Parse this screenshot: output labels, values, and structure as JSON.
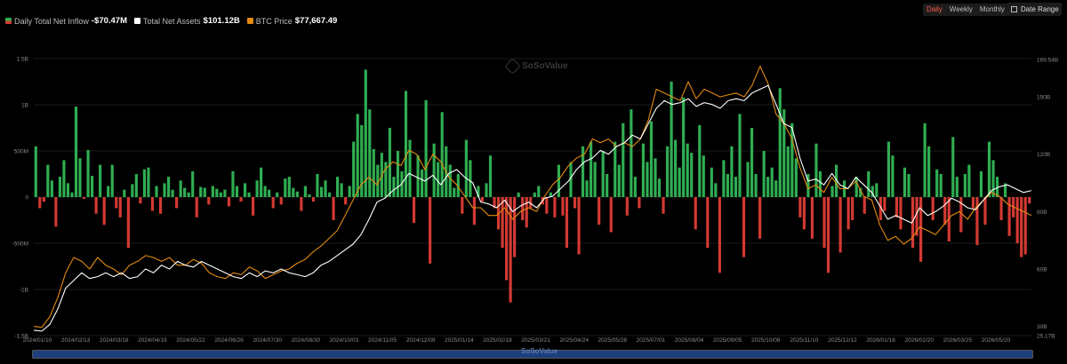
{
  "legend": {
    "inflow_label": "Daily Total Net Inflow",
    "inflow_value": "-$70.47M",
    "assets_label": "Total Net Assets",
    "assets_value": "$101.12B",
    "btc_label": "BTC Price",
    "btc_value": "$77,667.49"
  },
  "controls": {
    "daily": "Daily",
    "weekly": "Weekly",
    "monthly": "Monthly",
    "date_range": "Date Range"
  },
  "watermark": "SoSoValue",
  "colors": {
    "inflow_positive": "#2fae52",
    "inflow_negative": "#d23a32",
    "assets_line": "#ffffff",
    "btc_line": "#e28a12",
    "active_period": "#ff5a4a",
    "navigator": "#1e3f7d"
  },
  "chart_data": {
    "type": "bar",
    "left_axis": {
      "ticks": [
        "1.5B",
        "1B",
        "500M",
        "0",
        "-500M",
        "-1B",
        "-1.5B"
      ],
      "range": [
        -1.5,
        1.5
      ],
      "unit": "B USD"
    },
    "right_axis": {
      "ticks": [
        "169.54B",
        "150B",
        "120B",
        "90B",
        "60B",
        "30B",
        "25.17B"
      ],
      "range": [
        25.17,
        169.54
      ],
      "unit": "B USD"
    },
    "x_ticks": [
      "2024/01/10",
      "2024/02/13",
      "2024/03/18",
      "2024/04/19",
      "2024/05/22",
      "2024/06/26",
      "2024/07/30",
      "2024/08/30",
      "2024/10/03",
      "2024/11/05",
      "2024/12/09",
      "2025/01/14",
      "2025/02/18",
      "2025/03/21",
      "2025/04/24",
      "2025/05/28",
      "2025/07/01",
      "2025/08/04",
      "2025/09/05",
      "2025/10/08",
      "2025/11/10",
      "2025/12/12",
      "2026/01/16",
      "2026/02/20",
      "2026/03/25",
      "2026/05/20"
    ],
    "series": [
      {
        "name": "Daily Total Net Inflow",
        "kind": "bar",
        "axis": "left",
        "values": [
          0.55,
          -0.12,
          -0.05,
          0.35,
          0.18,
          -0.32,
          0.22,
          0.4,
          0.15,
          0.05,
          0.98,
          0.42,
          -0.02,
          0.51,
          0.23,
          -0.18,
          0.35,
          -0.3,
          0.12,
          0.35,
          -0.12,
          -0.22,
          0.08,
          -0.55,
          0.14,
          0.25,
          -0.07,
          0.3,
          0.32,
          -0.15,
          0.12,
          -0.18,
          0.15,
          0.22,
          0.08,
          -0.12,
          0.18,
          0.1,
          0.05,
          0.28,
          -0.22,
          0.11,
          0.1,
          -0.08,
          0.12,
          0.09,
          0.05,
          0.08,
          -0.1,
          0.28,
          0.12,
          -0.05,
          0.15,
          0.05,
          -0.2,
          0.18,
          0.32,
          0.12,
          0.08,
          -0.12,
          0.05,
          -0.08,
          0.2,
          0.22,
          0.1,
          0.06,
          -0.15,
          0.12,
          0.03,
          -0.05,
          0.25,
          0.11,
          0.18,
          0.05,
          -0.25,
          0.22,
          0.15,
          -0.08,
          0.12,
          0.6,
          0.9,
          0.78,
          1.38,
          0.95,
          0.52,
          0.35,
          0.48,
          0.38,
          0.75,
          0.22,
          0.5,
          0.28,
          1.15,
          0.62,
          -0.28,
          0.45,
          0.3,
          1.05,
          -0.72,
          0.58,
          0.38,
          0.92,
          0.55,
          0.35,
          0.1,
          0.25,
          -0.18,
          0.62,
          0.4,
          -0.3,
          0.12,
          -0.05,
          0.15,
          0.45,
          -0.12,
          -0.35,
          -0.55,
          -0.9,
          -1.14,
          -0.65,
          0.05,
          -0.25,
          -0.33,
          -0.12,
          0.05,
          0.12,
          -0.08,
          -0.18,
          0.05,
          -0.22,
          0.35,
          -0.2,
          -0.55,
          0.38,
          -0.12,
          -0.62,
          0.55,
          0.18,
          0.6,
          0.38,
          -0.3,
          0.5,
          0.25,
          -0.38,
          0.6,
          0.35,
          0.8,
          -0.2,
          0.95,
          0.22,
          -0.12,
          0.58,
          0.38,
          0.82,
          0.42,
          0.2,
          -0.18,
          0.55,
          1.25,
          0.62,
          0.32,
          1.08,
          0.58,
          0.48,
          -0.35,
          0.78,
          0.45,
          -0.55,
          0.32,
          0.15,
          -0.82,
          0.4,
          0.25,
          0.55,
          0.22,
          0.9,
          -0.65,
          0.38,
          0.75,
          0.25,
          -0.45,
          0.5,
          0.22,
          0.32,
          0.18,
          1.18,
          0.95,
          0.55,
          0.8,
          0.42,
          -0.22,
          -0.35,
          0.25,
          -0.45,
          0.58,
          0.28,
          -0.55,
          -0.82,
          0.12,
          0.35,
          -0.6,
          0.18,
          -0.35,
          -0.25,
          0.22,
          0.1,
          -0.18,
          0.28,
          0.12,
          0.15,
          -0.25,
          -0.15,
          0.6,
          0.45,
          -0.22,
          -0.35,
          0.32,
          0.25,
          -0.55,
          -0.42,
          -0.7,
          0.8,
          0.55,
          -0.25,
          0.3,
          0.25,
          -0.3,
          -0.48,
          0.65,
          0.22,
          -0.38,
          0.25,
          0.35,
          -0.12,
          -0.52,
          0.28,
          -0.3,
          0.6,
          0.4,
          0.22,
          -0.25,
          0.15,
          -0.42,
          -0.22,
          -0.5,
          -0.65,
          -0.62,
          -0.07
        ]
      },
      {
        "name": "Total Net Assets",
        "kind": "line",
        "axis": "right",
        "values": [
          28,
          27.5,
          31,
          39,
          50,
          54,
          58,
          55,
          56,
          58,
          56,
          58,
          55,
          56,
          60,
          58,
          62,
          60,
          64,
          62,
          61,
          64,
          62,
          60,
          58,
          56,
          55,
          58,
          56,
          59,
          58,
          60,
          58,
          57,
          56,
          58,
          62,
          64,
          67,
          70,
          73,
          78,
          86,
          95,
          97,
          101,
          104,
          110,
          108,
          106,
          109,
          104,
          110,
          112,
          108,
          105,
          95,
          94,
          92,
          96,
          90,
          93,
          95,
          92,
          97,
          98,
          102,
          106,
          112,
          116,
          118,
          122,
          120,
          124,
          126,
          130,
          128,
          136,
          144,
          148,
          146,
          147,
          149,
          145,
          147,
          146,
          144,
          148,
          149,
          148,
          152,
          154,
          156,
          146,
          136,
          134,
          118,
          106,
          107,
          104,
          110,
          104,
          102,
          108,
          104,
          100,
          93,
          86,
          88,
          86,
          84,
          92,
          88,
          90,
          93,
          97,
          95,
          92,
          91,
          96,
          101,
          103,
          104,
          102,
          100,
          101
        ]
      },
      {
        "name": "BTC Price",
        "kind": "line",
        "axis": "right",
        "values": [
          30,
          29.5,
          35,
          45,
          58,
          66,
          64,
          60,
          66,
          62,
          60,
          57,
          62,
          64,
          67,
          66,
          64,
          66,
          62,
          62,
          65,
          63,
          58,
          56,
          55,
          58,
          57,
          61,
          59,
          55,
          57,
          59,
          60,
          63,
          65,
          69,
          72,
          76,
          80,
          88,
          96,
          104,
          108,
          104,
          112,
          116,
          114,
          122,
          120,
          112,
          120,
          116,
          108,
          104,
          98,
          92,
          92,
          88,
          88,
          92,
          86,
          90,
          92,
          90,
          98,
          104,
          108,
          114,
          118,
          120,
          128,
          126,
          128,
          124,
          126,
          124,
          128,
          138,
          154,
          152,
          150,
          148,
          158,
          149,
          154,
          152,
          150,
          151,
          152,
          150,
          156,
          166,
          157,
          141,
          136,
          128,
          113,
          102,
          104,
          100,
          108,
          102,
          102,
          106,
          98,
          96,
          83,
          75,
          77,
          73,
          76,
          82,
          80,
          78,
          83,
          88,
          90,
          86,
          92,
          96,
          100,
          98,
          94,
          92,
          90,
          88
        ]
      }
    ]
  }
}
